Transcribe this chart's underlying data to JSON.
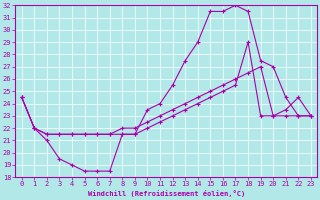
{
  "xlabel": "Windchill (Refroidissement éolien,°C)",
  "bg_color": "#b3e8e8",
  "line_color": "#aa00aa",
  "marker": "+",
  "xlim": [
    -0.5,
    23.5
  ],
  "ylim": [
    18,
    32
  ],
  "xticks": [
    0,
    1,
    2,
    3,
    4,
    5,
    6,
    7,
    8,
    9,
    10,
    11,
    12,
    13,
    14,
    15,
    16,
    17,
    18,
    19,
    20,
    21,
    22,
    23
  ],
  "yticks": [
    18,
    19,
    20,
    21,
    22,
    23,
    24,
    25,
    26,
    27,
    28,
    29,
    30,
    31,
    32
  ],
  "line1_x": [
    0,
    1,
    2,
    3,
    4,
    5,
    6,
    7,
    8,
    9,
    10,
    11,
    12,
    13,
    14,
    15,
    16,
    17,
    18,
    19,
    20,
    21,
    22,
    23
  ],
  "line1_y": [
    24.5,
    22.0,
    21.5,
    21.5,
    21.5,
    21.5,
    21.5,
    21.5,
    22.0,
    22.0,
    22.5,
    23.0,
    23.5,
    24.0,
    24.5,
    25.0,
    25.5,
    26.0,
    26.5,
    27.0,
    23.0,
    23.0,
    23.0,
    23.0
  ],
  "line2_x": [
    0,
    1,
    2,
    3,
    4,
    5,
    6,
    7,
    8,
    9,
    10,
    11,
    12,
    13,
    14,
    15,
    16,
    17,
    18,
    19,
    20,
    21,
    22,
    23
  ],
  "line2_y": [
    24.5,
    22.0,
    21.0,
    19.5,
    19.0,
    18.5,
    18.5,
    18.5,
    21.5,
    21.5,
    23.5,
    24.0,
    25.5,
    27.5,
    29.0,
    31.5,
    31.5,
    32.0,
    31.5,
    27.5,
    27.0,
    24.5,
    23.0,
    23.0
  ],
  "line3_x": [
    0,
    1,
    2,
    3,
    4,
    5,
    6,
    7,
    8,
    9,
    10,
    11,
    12,
    13,
    14,
    15,
    16,
    17,
    18,
    19,
    20,
    21,
    22,
    23
  ],
  "line3_y": [
    24.5,
    22.0,
    21.5,
    21.5,
    21.5,
    21.5,
    21.5,
    21.5,
    21.5,
    21.5,
    22.0,
    22.5,
    23.0,
    23.5,
    24.0,
    24.5,
    25.0,
    25.5,
    29.0,
    23.0,
    23.0,
    23.5,
    24.5,
    23.0
  ]
}
